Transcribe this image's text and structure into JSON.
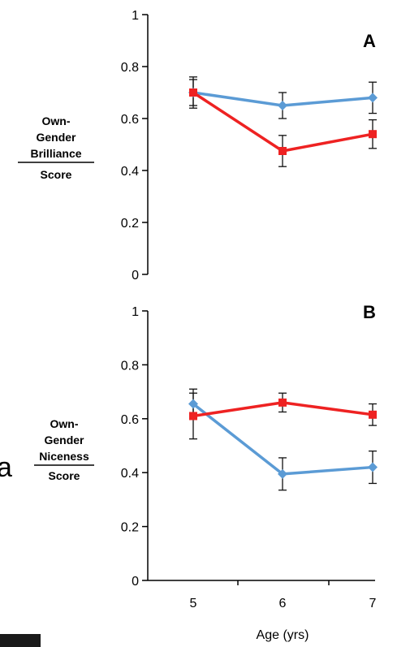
{
  "chart_data": [
    {
      "type": "line",
      "panel": "A",
      "ylabel_lines": [
        "Own-",
        "Gender",
        "Brilliance",
        "Score"
      ],
      "ylim": [
        0,
        1
      ],
      "yticks": [
        "0",
        "0.2",
        "0.4",
        "0.6",
        "0.8",
        "1"
      ],
      "x": [
        5,
        6,
        7
      ],
      "xticks": [
        "5",
        "6",
        "7"
      ],
      "series": [
        {
          "color": "#5b9bd5",
          "marker": "diamond",
          "values": [
            0.7,
            0.65,
            0.68
          ],
          "errors": [
            0.06,
            0.05,
            0.06
          ]
        },
        {
          "color": "#ee2222",
          "marker": "square",
          "values": [
            0.7,
            0.475,
            0.54
          ],
          "errors": [
            0.05,
            0.06,
            0.055
          ]
        }
      ]
    },
    {
      "type": "line",
      "panel": "B",
      "ylabel_lines": [
        "Own-",
        "Gender",
        "Niceness",
        "Score"
      ],
      "ylim": [
        0,
        1
      ],
      "yticks": [
        "0",
        "0.2",
        "0.4",
        "0.6",
        "0.8",
        "1"
      ],
      "x": [
        5,
        6,
        7
      ],
      "xticks": [
        "5",
        "6",
        "7"
      ],
      "xlabel": "Age (yrs)",
      "series": [
        {
          "color": "#5b9bd5",
          "marker": "diamond",
          "values": [
            0.655,
            0.395,
            0.42
          ],
          "errors": [
            0.055,
            0.06,
            0.06
          ]
        },
        {
          "color": "#ee2222",
          "marker": "square",
          "values": [
            0.61,
            0.66,
            0.615
          ],
          "errors": [
            0.085,
            0.035,
            0.04
          ]
        }
      ]
    }
  ],
  "stray_glyph": "a"
}
